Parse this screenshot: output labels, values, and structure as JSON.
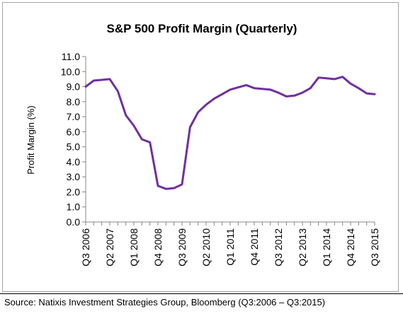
{
  "chart_data": {
    "type": "line",
    "title": "S&P 500 Profit Margin (Quarterly)",
    "xlabel": "",
    "ylabel": "Profit Margin (%)",
    "ylim": [
      0,
      11
    ],
    "ytick_step": 1,
    "grid": false,
    "legend": "none",
    "line_color": "#7030a0",
    "x_tick_labels": [
      "Q3 2006",
      "Q2 2007",
      "Q1 2008",
      "Q4 2008",
      "Q3 2009",
      "Q2 2010",
      "Q1 2011",
      "Q4 2011",
      "Q3 2012",
      "Q2 2013",
      "Q1 2014",
      "Q4 2014",
      "Q3 2015"
    ],
    "x": [
      "Q3 2006",
      "Q4 2006",
      "Q1 2007",
      "Q2 2007",
      "Q3 2007",
      "Q4 2007",
      "Q1 2008",
      "Q2 2008",
      "Q3 2008",
      "Q4 2008",
      "Q1 2009",
      "Q2 2009",
      "Q3 2009",
      "Q4 2009",
      "Q1 2010",
      "Q2 2010",
      "Q3 2010",
      "Q4 2010",
      "Q1 2011",
      "Q2 2011",
      "Q3 2011",
      "Q4 2011",
      "Q1 2012",
      "Q2 2012",
      "Q3 2012",
      "Q4 2012",
      "Q1 2013",
      "Q2 2013",
      "Q3 2013",
      "Q4 2013",
      "Q1 2014",
      "Q2 2014",
      "Q3 2014",
      "Q4 2014",
      "Q1 2015",
      "Q2 2015",
      "Q3 2015"
    ],
    "series": [
      {
        "values": [
          9.0,
          9.4,
          9.45,
          9.5,
          8.7,
          7.1,
          6.4,
          5.5,
          5.3,
          2.4,
          2.2,
          2.25,
          2.5,
          6.3,
          7.3,
          7.8,
          8.2,
          8.5,
          8.8,
          8.95,
          9.1,
          8.9,
          8.85,
          8.8,
          8.6,
          8.35,
          8.4,
          8.6,
          8.9,
          9.6,
          9.55,
          9.5,
          9.65,
          9.2,
          8.9,
          8.55,
          8.5
        ]
      }
    ]
  },
  "source_note": "Source: Natixis Investment Strategies Group, Bloomberg (Q3:2006 – Q3:2015)"
}
